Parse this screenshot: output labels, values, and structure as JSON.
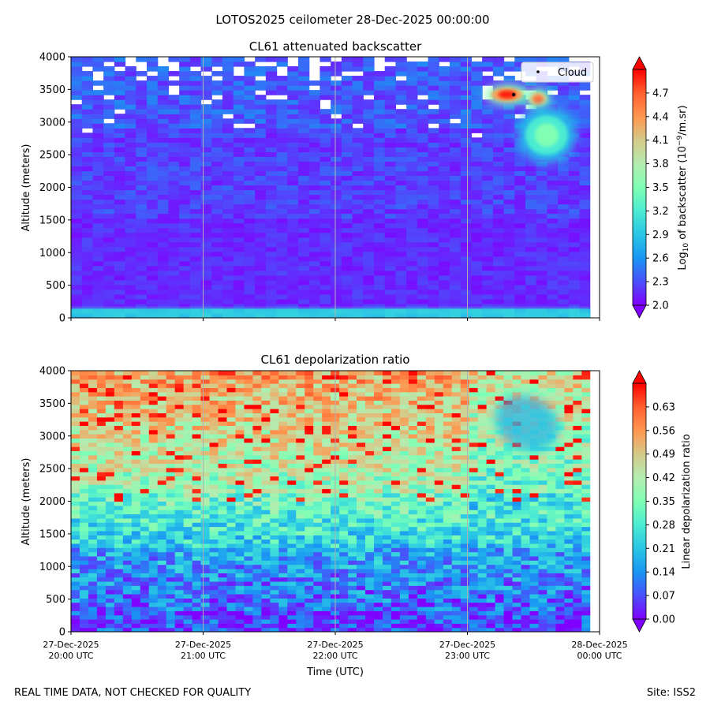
{
  "figure": {
    "suptitle": "LOTOS2025 ceilometer 28-Dec-2025 00:00:00",
    "footer_left": "REAL TIME DATA, NOT CHECKED FOR QUALITY",
    "footer_right": "Site: ISS2"
  },
  "colors": {
    "rainbow": [
      "#8000ff",
      "#4b50fb",
      "#1996f3",
      "#2ac6e5",
      "#4bebd2",
      "#80ffb4",
      "#b4ecb0",
      "#d5ca89",
      "#ff964f",
      "#ff6030",
      "#ff0000"
    ]
  },
  "chart_data": [
    {
      "type": "heatmap",
      "title": "CL61 attenuated backscatter",
      "ylabel": "Altitude (meters)",
      "xlabel": "",
      "ylim": [
        0,
        4000
      ],
      "y_ticks": [
        "0",
        "500",
        "1000",
        "1500",
        "2000",
        "2500",
        "3000",
        "3500",
        "4000"
      ],
      "x_range_utc": [
        "27-Dec-2025 20:00",
        "28-Dec-2025 00:00"
      ],
      "x_ticks": [],
      "colorbar": {
        "label_prefix": "Log",
        "label_sub": "10",
        "label_mid": " of backscatter (10",
        "label_sup": "−9",
        "label_suffix": "/m.sr)",
        "range": [
          2.0,
          5.0
        ],
        "ticks": [
          "2.0",
          "2.3",
          "2.6",
          "2.9",
          "3.2",
          "3.5",
          "3.8",
          "4.1",
          "4.4",
          "4.7"
        ]
      },
      "legend": {
        "position": "upper right",
        "label": "Cloud"
      },
      "annotations": [
        {
          "type": "cloud_point",
          "time_hours_after_2000": 3.35,
          "altitude": 3420
        }
      ],
      "features": [
        {
          "name": "cloud",
          "time_start_h": 3.15,
          "time_end_h": 3.45,
          "alt_min": 3280,
          "alt_max": 3560,
          "peak": 4.9
        },
        {
          "name": "cloud-secondary",
          "time_start_h": 3.45,
          "time_end_h": 3.62,
          "alt_min": 3200,
          "alt_max": 3500,
          "peak": 4.6
        },
        {
          "name": "virga",
          "time_start_h": 3.4,
          "time_end_h": 3.8,
          "alt_min": 2400,
          "alt_max": 3200,
          "peak": 3.5
        },
        {
          "name": "surface-layer",
          "alt_min": 0,
          "alt_max": 150,
          "peak": 3.0
        }
      ]
    },
    {
      "type": "heatmap",
      "title": "CL61 depolarization ratio",
      "ylabel": "Altitude (meters)",
      "xlabel": "Time (UTC)",
      "ylim": [
        0,
        4000
      ],
      "y_ticks": [
        "0",
        "500",
        "1000",
        "1500",
        "2000",
        "2500",
        "3000",
        "3500",
        "4000"
      ],
      "x_range_utc": [
        "27-Dec-2025 20:00",
        "28-Dec-2025 00:00"
      ],
      "x_ticks": [
        [
          "27-Dec-2025",
          "20:00 UTC"
        ],
        [
          "27-Dec-2025",
          "21:00 UTC"
        ],
        [
          "27-Dec-2025",
          "22:00 UTC"
        ],
        [
          "27-Dec-2025",
          "23:00 UTC"
        ],
        [
          "28-Dec-2025",
          "00:00 UTC"
        ]
      ],
      "colorbar": {
        "label": "Linear depolarization ratio",
        "range": [
          0.0,
          0.7
        ],
        "ticks": [
          "0.00",
          "0.07",
          "0.14",
          "0.21",
          "0.28",
          "0.35",
          "0.42",
          "0.49",
          "0.56",
          "0.63"
        ]
      },
      "features": [
        {
          "name": "low-depol-region",
          "time_start_h": 3.2,
          "time_end_h": 3.7,
          "alt_min": 2800,
          "alt_max": 3600,
          "value": 0.18
        }
      ]
    }
  ]
}
